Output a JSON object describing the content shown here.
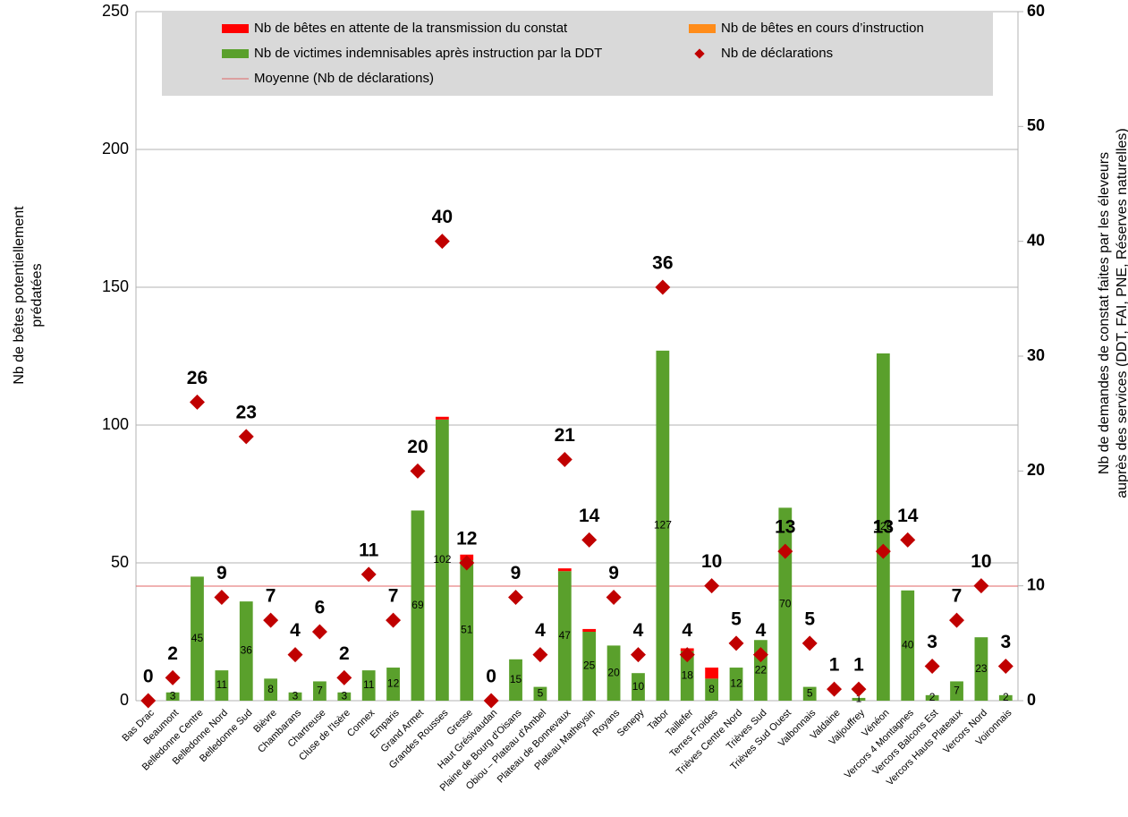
{
  "chart_data": {
    "type": "bar-scatter",
    "categories": [
      "Bas Drac",
      "Beaumont",
      "Belledonne Centre",
      "Belledonne Nord",
      "Belledonne Sud",
      "Bièvre",
      "Chambarans",
      "Chartreuse",
      "Cluse de l'Isère",
      "Connex",
      "Emparis",
      "Grand Armet",
      "Grandes Rousses",
      "Gresse",
      "Haut Grésivaudan",
      "Plaine de Bourg d'Oisans",
      "Obiou – Plateau d'Ambel",
      "Plateau de Bonnevaux",
      "Plateau Matheysin",
      "Royans",
      "Senepy",
      "Tabor",
      "Taillefer",
      "Terres Froides",
      "Trièves Centre Nord",
      "Trièves Sud",
      "Trièves Sud Ouest",
      "Valbonnais",
      "Valdaine",
      "Valjouffrey",
      "Vénéon",
      "Vercors 4 Montagnes",
      "Vercors Balcons Est",
      "Vercors Hauts Plateaux",
      "Vercors Nord",
      "Voironnais"
    ],
    "series": [
      {
        "name": "Nb de bêtes en attente de la transmission du constat",
        "color": "#ff0000",
        "stack": 2,
        "values": [
          0,
          0,
          0,
          0,
          0,
          0,
          0,
          0,
          0,
          0,
          0,
          0,
          1,
          2,
          0,
          0,
          0,
          1,
          1,
          0,
          0,
          0,
          1,
          4,
          0,
          0,
          0,
          0,
          0,
          0,
          0,
          0,
          0,
          0,
          0,
          0
        ]
      },
      {
        "name": "Nb de bêtes en cours d’instruction",
        "color": "#ff8c1a",
        "stack": 1,
        "values": [
          0,
          0,
          0,
          0,
          0,
          0,
          0,
          0,
          0,
          0,
          0,
          0,
          0,
          0,
          0,
          0,
          0,
          0,
          0,
          0,
          0,
          0,
          0,
          0,
          0,
          0,
          0,
          0,
          0,
          0,
          0,
          0,
          0,
          0,
          0,
          0
        ]
      },
      {
        "name": "Nb de victimes indemnisables après instruction par la DDT",
        "color": "#5aa02c",
        "stack": 0,
        "show_labels": true,
        "values": [
          0,
          3,
          45,
          11,
          36,
          8,
          3,
          7,
          3,
          11,
          12,
          69,
          102,
          51,
          0,
          15,
          5,
          47,
          25,
          20,
          10,
          127,
          18,
          8,
          12,
          22,
          70,
          5,
          0,
          1,
          126,
          40,
          2,
          7,
          23,
          2
        ]
      },
      {
        "name": "Nb de déclarations",
        "color": "#c00000",
        "axis": "y2",
        "marker": "diamond",
        "values": [
          0,
          2,
          26,
          9,
          23,
          7,
          4,
          6,
          2,
          11,
          7,
          20,
          40,
          12,
          0,
          9,
          4,
          21,
          14,
          9,
          4,
          36,
          4,
          10,
          5,
          4,
          13,
          5,
          1,
          1,
          13,
          14,
          3,
          7,
          10,
          3
        ]
      }
    ],
    "mean": {
      "name": "Moyenne (Nb de déclarations)",
      "color": "#e06666",
      "axis": "y2",
      "value": 9.97
    },
    "ylabel": [
      "Nb de bêtes potentiellement",
      "prédatées"
    ],
    "y2label": [
      "Nb de demandes de constat faites par les éleveurs",
      "auprès des services (DDT, FAI, PNE, Réserves naturelles)"
    ],
    "ylim": [
      0,
      250
    ],
    "yticks": [
      0,
      50,
      100,
      150,
      200,
      250
    ],
    "y2lim": [
      0,
      60
    ],
    "y2ticks": [
      0,
      10,
      20,
      30,
      40,
      50,
      60
    ],
    "grid": true,
    "legend": "top"
  }
}
